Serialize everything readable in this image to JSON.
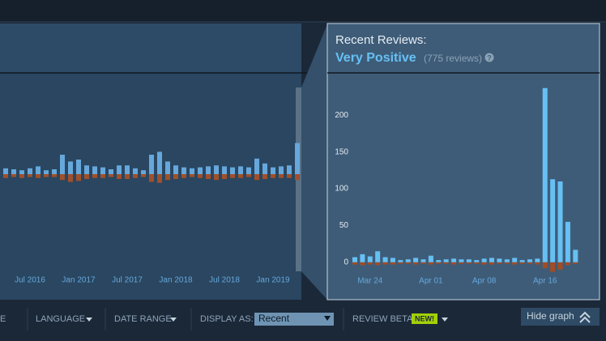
{
  "chart_data": [
    {
      "type": "bar",
      "categories": [
        null,
        null,
        null,
        "Jul 2016",
        null,
        null,
        null,
        null,
        null,
        "Jan 2017",
        null,
        null,
        null,
        null,
        null,
        "Jul 2017",
        null,
        null,
        null,
        null,
        null,
        "Jan 2018",
        null,
        null,
        null,
        null,
        null,
        "Jul 2018",
        null,
        null,
        null,
        null,
        null,
        "Jan 2019",
        null,
        null,
        null
      ],
      "series": [
        {
          "color": "#66a8dc",
          "values": [
            6,
            5,
            4,
            6,
            8,
            4,
            5,
            20,
            13,
            15,
            9,
            8,
            7,
            5,
            9,
            9,
            6,
            4,
            20,
            23,
            13,
            9,
            7,
            6,
            7,
            8,
            9,
            8,
            7,
            8,
            7,
            16,
            11,
            7,
            8,
            9,
            32
          ]
        },
        {
          "color": "#a0502a",
          "values": [
            -4,
            -3,
            -4,
            -3,
            -4,
            -3,
            -3,
            -6,
            -8,
            -7,
            -5,
            -4,
            -4,
            -3,
            -5,
            -5,
            -4,
            -3,
            -8,
            -9,
            -6,
            -5,
            -4,
            -3,
            -4,
            -5,
            -6,
            -5,
            -4,
            -4,
            -3,
            -6,
            -5,
            -4,
            -4,
            -4,
            -6
          ]
        }
      ],
      "ylim": [
        -100,
        100
      ]
    },
    {
      "type": "bar",
      "title": "Recent Reviews:",
      "rating": "Very Positive",
      "count_text": "(775 reviews)",
      "help": "?",
      "categories": [
        null,
        null,
        "Mar 24",
        null,
        null,
        null,
        null,
        null,
        null,
        null,
        "Apr 01",
        null,
        null,
        null,
        null,
        null,
        null,
        "Apr 08",
        null,
        null,
        null,
        null,
        null,
        null,
        null,
        "Apr 16",
        null,
        null,
        null,
        null
      ],
      "series": [
        {
          "color": "#66c0f4",
          "values": [
            7,
            11,
            8,
            15,
            7,
            6,
            3,
            4,
            6,
            4,
            9,
            3,
            4,
            5,
            4,
            4,
            3,
            5,
            6,
            5,
            4,
            6,
            3,
            4,
            5,
            237,
            113,
            110,
            55,
            17
          ]
        },
        {
          "color": "#a34c25",
          "values": [
            -3,
            -4,
            -3,
            -4,
            -3,
            -3,
            -2,
            -2,
            -3,
            -2,
            -3,
            -2,
            -2,
            -3,
            -2,
            -2,
            -2,
            -3,
            -3,
            -2,
            -2,
            -3,
            -2,
            -2,
            -3,
            -8,
            -13,
            -10,
            -4,
            -2
          ]
        }
      ],
      "ylim": [
        -20,
        240
      ],
      "yticks": [
        0,
        50,
        100,
        150,
        200
      ]
    }
  ],
  "filters": {
    "cut": "E",
    "language": "LANGUAGE",
    "date_range": "DATE RANGE",
    "display_as": "DISPLAY AS:",
    "display_value": "Recent",
    "review_beta": "REVIEW BETA",
    "new_badge": "NEW!",
    "hide_graph": "Hide graph"
  }
}
